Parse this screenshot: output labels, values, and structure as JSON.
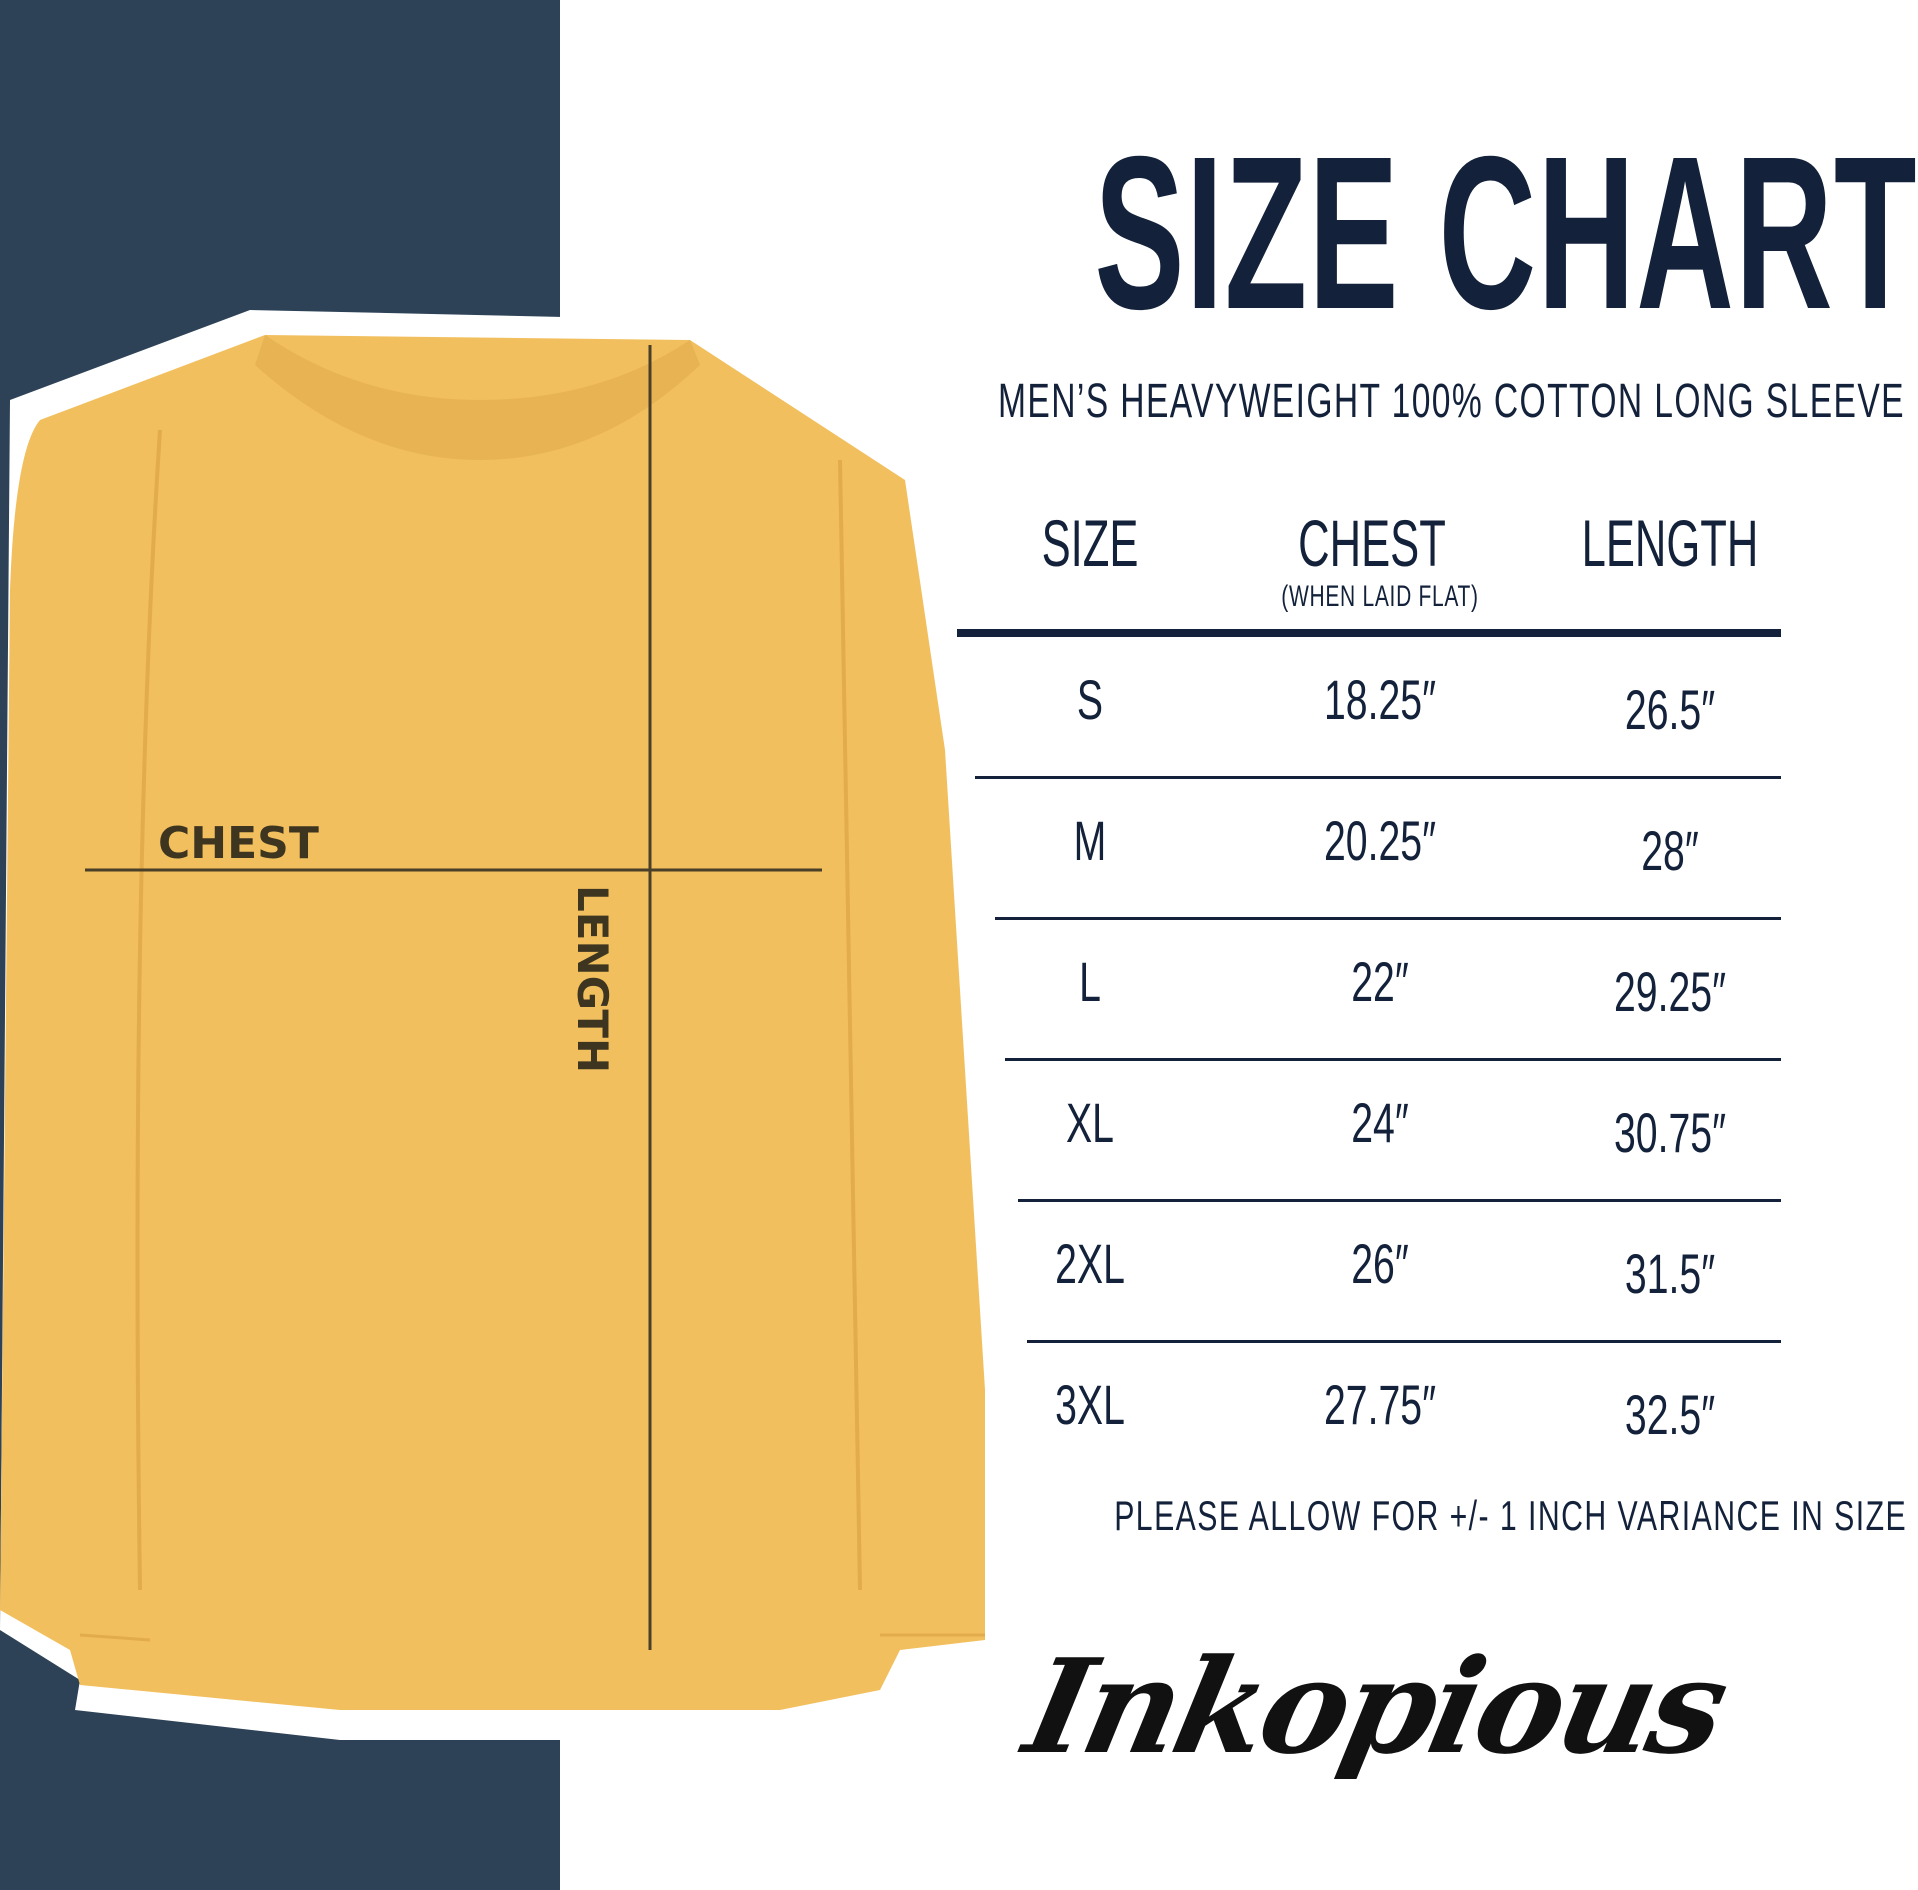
{
  "title": "SIZE CHART",
  "subtitle": "MEN’S HEAVYWEIGHT 100% COTTON LONG SLEEVE",
  "shirt": {
    "chest_label": "CHEST",
    "length_label": "LENGTH",
    "shirt_color": "#f2bf5e",
    "panel_color": "#2d4257"
  },
  "table": {
    "headers": [
      {
        "label": "SIZE"
      },
      {
        "label": "CHEST",
        "sub": "(WHEN LAID FLAT)"
      },
      {
        "label": "LENGTH"
      }
    ],
    "rows": [
      {
        "size": "S",
        "chest": "18.25″",
        "length": "26.5″"
      },
      {
        "size": "M",
        "chest": "20.25″",
        "length": "28″"
      },
      {
        "size": "L",
        "chest": "22″",
        "length": "29.25″"
      },
      {
        "size": "XL",
        "chest": "24″",
        "length": "30.75″"
      },
      {
        "size": "2XL",
        "chest": "26″",
        "length": "31.5″"
      },
      {
        "size": "3XL",
        "chest": "27.75″",
        "length": "32.5″"
      }
    ]
  },
  "note": "PLEASE ALLOW FOR +/- 1 INCH VARIANCE IN SIZE",
  "brand": "Inkopious"
}
